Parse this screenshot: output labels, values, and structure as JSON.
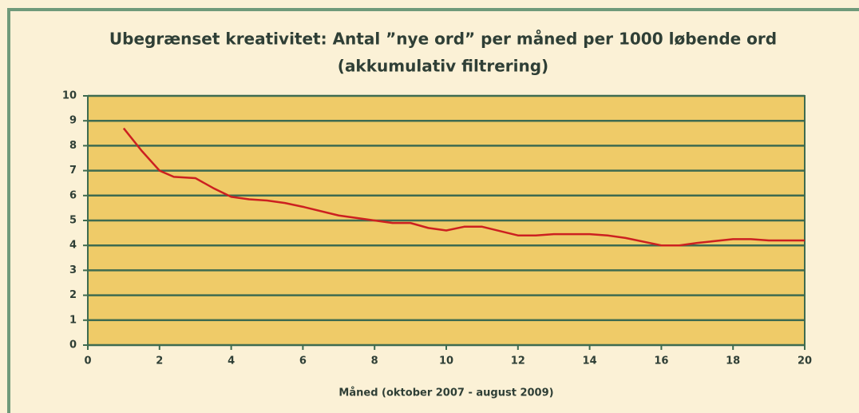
{
  "chart_data": {
    "type": "line",
    "title": [
      "Ubegrænset kreativitet: Antal ”nye ord” per måned per 1000 løbende ord",
      "(akkumulativ filtrering)"
    ],
    "x_label": "Måned (oktober 2007 - august 2009)",
    "x": [
      1,
      1.5,
      2,
      2.4,
      3,
      3.5,
      4,
      4.5,
      5,
      5.5,
      6,
      7,
      8,
      8.5,
      9,
      9.5,
      10,
      10.5,
      11,
      12,
      12.5,
      13,
      14,
      14.5,
      15,
      16,
      16.5,
      17,
      18,
      18.5,
      19,
      20
    ],
    "series": [
      {
        "name": "nye ord",
        "color": "#cc2020",
        "values": [
          8.7,
          7.8,
          7.0,
          6.75,
          6.7,
          6.3,
          5.95,
          5.85,
          5.8,
          5.7,
          5.55,
          5.2,
          5.0,
          4.9,
          4.9,
          4.7,
          4.6,
          4.75,
          4.75,
          4.4,
          4.4,
          4.45,
          4.45,
          4.4,
          4.3,
          4.0,
          4.0,
          4.1,
          4.25,
          4.25,
          4.2,
          4.2
        ]
      }
    ],
    "xlim": [
      0,
      20
    ],
    "xticks": [
      0,
      2,
      4,
      6,
      8,
      10,
      12,
      14,
      16,
      18,
      20
    ],
    "ylim": [
      0,
      10
    ],
    "yticks": [
      0,
      1,
      2,
      3,
      4,
      5,
      6,
      7,
      8,
      9,
      10
    ],
    "grid": true,
    "plot_color": "#efcb68",
    "grid_color": "#3e6b50"
  }
}
